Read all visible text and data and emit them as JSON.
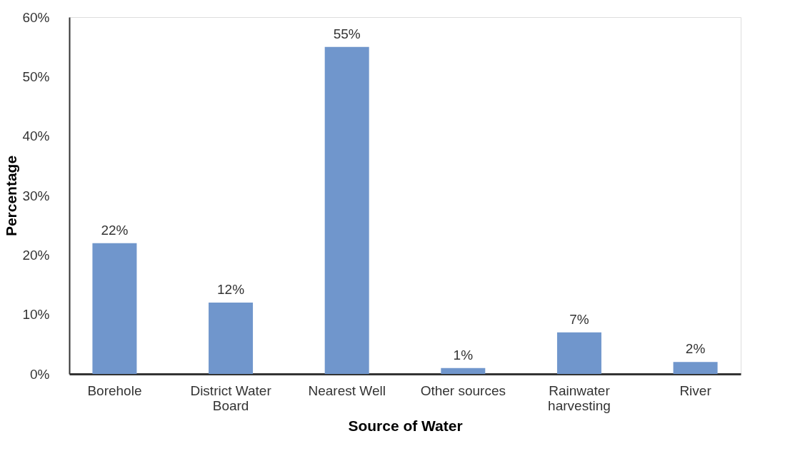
{
  "chart_data": {
    "type": "bar",
    "xlabel": "Source of Water",
    "ylabel": "Percentage",
    "categories": [
      "Borehole",
      "District Water Board",
      "Nearest Well",
      "Other sources",
      "Rainwater harvesting",
      "River"
    ],
    "values": [
      22,
      12,
      55,
      1,
      7,
      2
    ],
    "value_labels": [
      "22%",
      "12%",
      "55%",
      "1%",
      "7%",
      "2%"
    ],
    "color": "#7096cc",
    "ylim": [
      0,
      60
    ],
    "yticks": [
      {
        "value": 0,
        "label": "0%"
      },
      {
        "value": 10,
        "label": "10%"
      },
      {
        "value": 20,
        "label": "20%"
      },
      {
        "value": 30,
        "label": "30%"
      },
      {
        "value": 40,
        "label": "40%"
      },
      {
        "value": 50,
        "label": "50%"
      },
      {
        "value": 60,
        "label": "60%"
      }
    ],
    "grid": false
  }
}
